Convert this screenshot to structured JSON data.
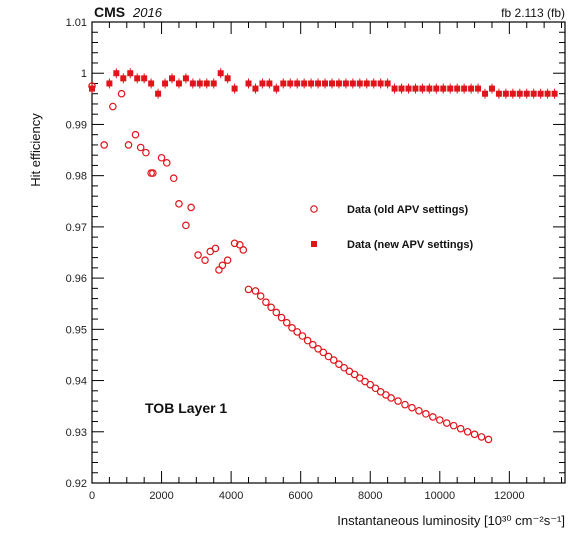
{
  "chart_data": {
    "type": "scatter",
    "header_left_bold": "CMS",
    "header_left_italic": "2016",
    "header_right": "fb 2.113 (fb)",
    "xlabel": "Instantaneous luminosity [10³⁰ cm⁻²s⁻¹]",
    "ylabel": "Hit efficiency",
    "xlim": [
      0,
      13600
    ],
    "ylim": [
      0.92,
      1.01
    ],
    "x_ticks": [
      0,
      2000,
      4000,
      6000,
      8000,
      10000,
      12000
    ],
    "x_tick_labels": [
      "0",
      "2000",
      "4000",
      "6000",
      "8000",
      "10000",
      "12000"
    ],
    "y_ticks": [
      0.92,
      0.93,
      0.94,
      0.95,
      0.96,
      0.97,
      0.98,
      0.99,
      1.0,
      1.01
    ],
    "y_tick_labels": [
      "0.92",
      "0.93",
      "0.94",
      "0.95",
      "0.96",
      "0.97",
      "0.98",
      "0.99",
      "1",
      "1.01"
    ],
    "annotation": "TOB Layer 1",
    "legend_position": "middle-right",
    "grid": false,
    "colors": {
      "series": "#e0151b",
      "axes": "#000000"
    },
    "series": [
      {
        "name": "Data (old APV settings)",
        "marker": "open-circle",
        "x": [
          0,
          350,
          600,
          850,
          1050,
          1250,
          1400,
          1550,
          1700,
          1750,
          2000,
          2150,
          2350,
          2500,
          2700,
          2850,
          3050,
          3250,
          3400,
          3550,
          3650,
          3750,
          3900,
          4100,
          4350,
          4250,
          4500,
          4700,
          4850,
          5000,
          5150,
          5300,
          5450,
          5600,
          5750,
          5900,
          6050,
          6200,
          6350,
          6500,
          6650,
          6800,
          6950,
          7100,
          7250,
          7400,
          7550,
          7700,
          7850,
          8000,
          8150,
          8300,
          8450,
          8600,
          8800,
          9000,
          9200,
          9400,
          9600,
          9800,
          10000,
          10200,
          10400,
          10600,
          10800,
          11000,
          11200,
          11400
        ],
        "y": [
          0.9975,
          0.986,
          0.9935,
          0.996,
          0.986,
          0.988,
          0.9855,
          0.9845,
          0.9805,
          0.9805,
          0.9835,
          0.9825,
          0.9795,
          0.9745,
          0.9703,
          0.9738,
          0.9645,
          0.9635,
          0.9652,
          0.9658,
          0.9616,
          0.9625,
          0.9635,
          0.9668,
          0.9655,
          0.9665,
          0.9578,
          0.9575,
          0.9565,
          0.9553,
          0.9543,
          0.9533,
          0.9523,
          0.9513,
          0.9503,
          0.9495,
          0.9487,
          0.9478,
          0.947,
          0.9462,
          0.9455,
          0.9447,
          0.944,
          0.9432,
          0.9425,
          0.9418,
          0.9412,
          0.9405,
          0.9398,
          0.9392,
          0.9385,
          0.9378,
          0.9372,
          0.9366,
          0.936,
          0.9353,
          0.9347,
          0.9341,
          0.9335,
          0.9329,
          0.9323,
          0.9317,
          0.9312,
          0.9306,
          0.93,
          0.9295,
          0.929,
          0.9285
        ]
      },
      {
        "name": "Data (new APV settings)",
        "marker": "filled-square",
        "x": [
          0,
          500,
          700,
          900,
          1100,
          1300,
          1500,
          1700,
          1900,
          2100,
          2300,
          2500,
          2700,
          2900,
          3100,
          3300,
          3500,
          3700,
          3900,
          4100,
          4500,
          4700,
          4900,
          5100,
          5300,
          5500,
          5700,
          5900,
          6100,
          6300,
          6500,
          6700,
          6900,
          7100,
          7300,
          7500,
          7700,
          7900,
          8100,
          8300,
          8500,
          8700,
          8900,
          9100,
          9300,
          9500,
          9700,
          9900,
          10100,
          10300,
          10500,
          10700,
          10900,
          11100,
          11300,
          11500,
          11700,
          11900,
          12100,
          12300,
          12500,
          12700,
          12900,
          13100,
          13300
        ],
        "y": [
          0.997,
          0.998,
          1.0,
          0.999,
          1.0,
          0.999,
          0.999,
          0.998,
          0.996,
          0.998,
          0.999,
          0.998,
          0.999,
          0.998,
          0.998,
          0.998,
          0.998,
          1.0,
          0.999,
          0.997,
          0.998,
          0.997,
          0.998,
          0.998,
          0.997,
          0.998,
          0.998,
          0.998,
          0.998,
          0.998,
          0.998,
          0.998,
          0.998,
          0.998,
          0.998,
          0.998,
          0.998,
          0.998,
          0.998,
          0.998,
          0.998,
          0.997,
          0.997,
          0.997,
          0.997,
          0.997,
          0.997,
          0.997,
          0.997,
          0.997,
          0.997,
          0.997,
          0.997,
          0.997,
          0.996,
          0.997,
          0.996,
          0.996,
          0.996,
          0.996,
          0.996,
          0.996,
          0.996,
          0.996,
          0.996
        ]
      }
    ]
  }
}
